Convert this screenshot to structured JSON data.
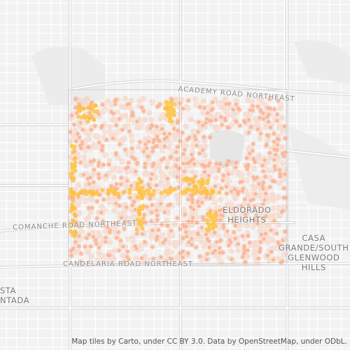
{
  "map": {
    "labels": {
      "academy": "ACADEMY ROAD NORTHEAST",
      "comanche": "COMANCHE ROAD NORTHEAST",
      "candelaria": "CANDELARIA ROAD NORTHEAST",
      "eldorado_line1": "ELDORADO",
      "eldorado_line2": "HEIGHTS",
      "casa_line1": "CASA",
      "casa_line2": "GRANDE/SOUTH",
      "casa_line3": "GLENWOOD",
      "casa_line4": "HILLS",
      "west_line1": "STA",
      "west_line2": "NTADA"
    },
    "attribution": "Map tiles by Carto, under CC BY 3.0. Data by OpenStreetMap, under ODbL.",
    "colors": {
      "background": "#f2f2f2",
      "street": "#ffffff",
      "major_road": "#d9d9d9",
      "dot_primary": "#ff9a6c",
      "dot_highlight": "#ffc233"
    }
  }
}
